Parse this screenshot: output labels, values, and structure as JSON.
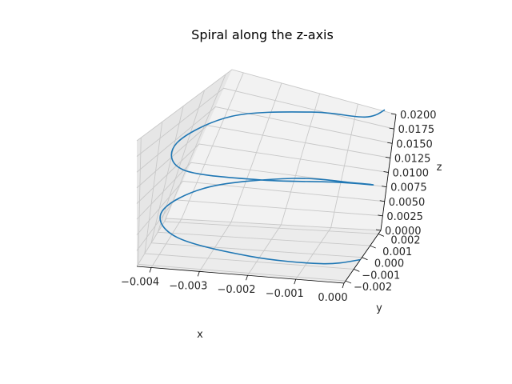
{
  "chart_data": {
    "type": "line3d",
    "title": "Spiral along the z-axis",
    "xlabel": "x",
    "ylabel": "y",
    "zlabel": "z",
    "xlim": [
      -0.0043,
      0.0
    ],
    "ylim": [
      -0.0022,
      0.0023
    ],
    "zlim": [
      0.0,
      0.02
    ],
    "xticks": [
      -0.004,
      -0.003,
      -0.002,
      -0.001,
      0.0
    ],
    "xtick_labels": [
      "−0.004",
      "−0.003",
      "−0.002",
      "−0.001",
      "0.000"
    ],
    "yticks": [
      -0.002,
      -0.001,
      0.0,
      0.001,
      0.002
    ],
    "ytick_labels": [
      "−0.002",
      "−0.001",
      "0.000",
      "0.001",
      "0.002"
    ],
    "zticks": [
      0.0,
      0.0025,
      0.005,
      0.0075,
      0.01,
      0.0125,
      0.015,
      0.0175,
      0.02
    ],
    "ztick_labels": [
      "0.0000",
      "0.0025",
      "0.0050",
      "0.0075",
      "0.0100",
      "0.0125",
      "0.0150",
      "0.0175",
      "0.0200"
    ],
    "grid": true,
    "series": [
      {
        "color": "#1f77b4",
        "description_points": {
          "x": [
            0.0,
            -0.0006,
            -0.002,
            -0.0036,
            -0.0042,
            -0.0036,
            -0.002,
            -0.0006,
            0.0,
            -0.0006,
            -0.002,
            -0.0036,
            -0.0042,
            -0.0036,
            -0.002,
            -0.0006,
            0.0
          ],
          "y": [
            -0.0002,
            -0.0016,
            -0.0022,
            -0.0016,
            -0.0002,
            0.0013,
            0.002,
            0.0013,
            -0.0002,
            -0.0016,
            -0.0022,
            -0.0016,
            -0.0002,
            0.0013,
            0.002,
            0.0013,
            -0.0002
          ],
          "z": [
            0.0,
            0.00125,
            0.0025,
            0.00375,
            0.005,
            0.00625,
            0.0075,
            0.00875,
            0.01,
            0.01125,
            0.0125,
            0.01375,
            0.015,
            0.01625,
            0.0175,
            0.01875,
            0.02
          ]
        }
      }
    ]
  }
}
